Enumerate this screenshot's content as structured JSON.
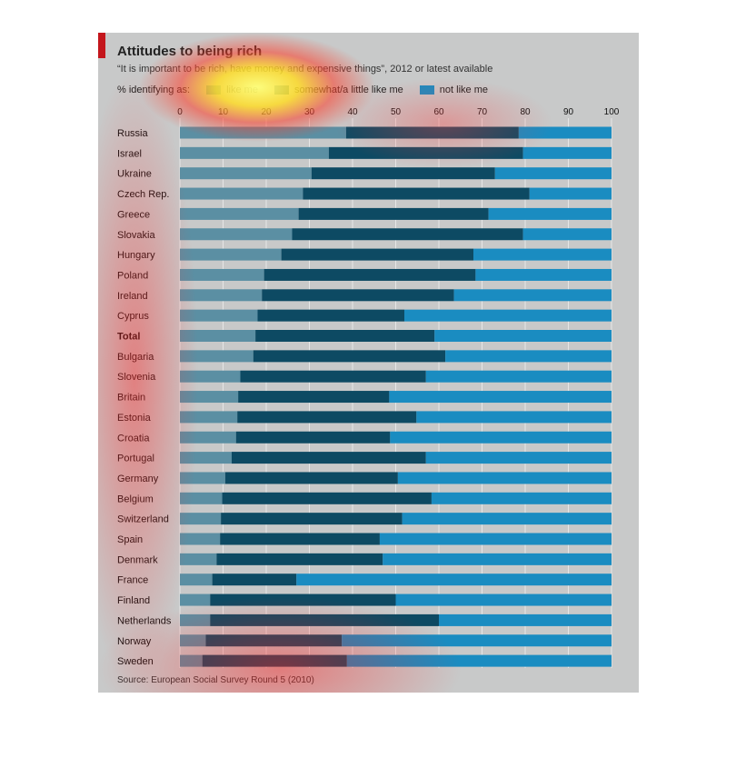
{
  "title": "Attitudes to being rich",
  "subtitle": "“It is important to be rich, have money and expensive things”, 2012 or latest available",
  "legend": {
    "prefix": "% identifying as:",
    "items": [
      {
        "label": "like me",
        "color": "#5b8fa3"
      },
      {
        "label": "somewhat/a little like me",
        "color": "#0d4a63"
      },
      {
        "label": "not like me",
        "color": "#1a8cc1"
      }
    ]
  },
  "source": "Source: European Social Survey Round 5 (2010)",
  "colors": {
    "panel": "#c8c9c9",
    "accent": "#c4161c",
    "like": "#5b8fa3",
    "somewhat": "#0d4a63",
    "not_like": "#1a8cc1"
  },
  "chart_data": {
    "type": "bar",
    "orientation": "horizontal",
    "stacked": true,
    "xlim": [
      0,
      100
    ],
    "ticks": [
      0,
      10,
      20,
      30,
      40,
      50,
      60,
      70,
      80,
      90,
      100
    ],
    "categories": [
      "Russia",
      "Israel",
      "Ukraine",
      "Czech Rep.",
      "Greece",
      "Slovakia",
      "Hungary",
      "Poland",
      "Ireland",
      "Cyprus",
      "Total",
      "Bulgaria",
      "Slovenia",
      "Britain",
      "Estonia",
      "Croatia",
      "Portugal",
      "Germany",
      "Belgium",
      "Switzerland",
      "Spain",
      "Denmark",
      "France",
      "Finland",
      "Netherlands",
      "Norway",
      "Sweden"
    ],
    "bold_category": "Total",
    "series": [
      {
        "name": "like me",
        "values": [
          38.5,
          34.5,
          30.5,
          28.5,
          27.5,
          26,
          23.5,
          19.5,
          19,
          18,
          17.5,
          17,
          14,
          13.5,
          13.3,
          13,
          12,
          10.5,
          9.8,
          9.5,
          9.3,
          8.5,
          7.5,
          7,
          7,
          6,
          5.2
        ]
      },
      {
        "name": "somewhat/a little like me",
        "values": [
          40,
          45,
          42.5,
          52.5,
          44,
          53.5,
          44.5,
          49,
          44.5,
          34,
          41.5,
          44.5,
          43,
          35,
          41.5,
          35.7,
          45,
          40,
          48.5,
          42,
          37,
          38.5,
          19.5,
          43,
          53,
          31.5,
          33.5
        ]
      },
      {
        "name": "not like me",
        "values": [
          21.5,
          20.5,
          27,
          19,
          28.5,
          20.5,
          32,
          31.5,
          36.5,
          48,
          41,
          38.5,
          43,
          51.5,
          45.2,
          51.3,
          43,
          49.5,
          41.7,
          48.5,
          53.7,
          53,
          73,
          50,
          40,
          62.5,
          61.3
        ]
      }
    ]
  }
}
